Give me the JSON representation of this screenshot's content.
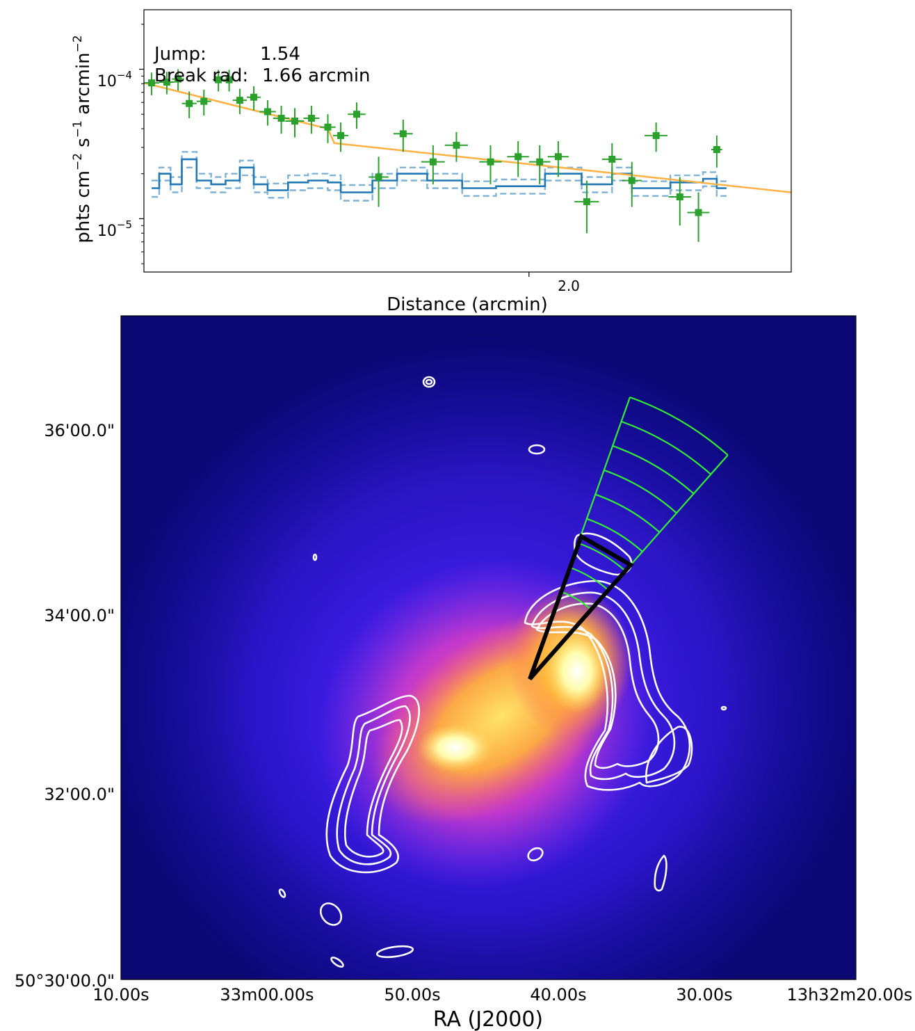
{
  "chart_data": [
    {
      "type": "scatter",
      "panel": "surface-brightness-profile",
      "xscale": "log",
      "yscale": "log",
      "xlabel": "Distance (arcmin)",
      "ylabel": "phts cm",
      "ylabel_parts": [
        "phts cm",
        "−2",
        " s",
        "−1",
        " arcmin",
        "−2"
      ],
      "xlim": [
        1.4,
        2.55
      ],
      "ylim": [
        4.4e-06,
        0.00025
      ],
      "x_ticks": [
        {
          "value": 2.0,
          "label": "2.0"
        }
      ],
      "y_ticks": [
        {
          "value": 0.0001,
          "base": "10",
          "exp": "−4"
        },
        {
          "value": 1e-05,
          "base": "10",
          "exp": "−5"
        }
      ],
      "annotations": [
        {
          "key": "Jump:",
          "value": "1.54"
        },
        {
          "key": "Break rad:",
          "value": "1.66 arcmin"
        }
      ],
      "colors": {
        "data": "#2ca02c",
        "model": "#ffb347",
        "background": "#1f77b4",
        "background_err": "#7fb2d5",
        "axes": "#000000"
      },
      "series": [
        {
          "name": "data",
          "style": "errorbar",
          "x": [
            1.41,
            1.43,
            1.445,
            1.46,
            1.48,
            1.5,
            1.515,
            1.53,
            1.55,
            1.57,
            1.59,
            1.61,
            1.635,
            1.66,
            1.68,
            1.705,
            1.74,
            1.78,
            1.83,
            1.87,
            1.93,
            1.98,
            2.02,
            2.055,
            2.11,
            2.16,
            2.2,
            2.25,
            2.3,
            2.34,
            2.38
          ],
          "y": [
            8.1e-05,
            8.2e-05,
            8.6e-05,
            5.9e-05,
            6.1e-05,
            8.5e-05,
            8.5e-05,
            6.2e-05,
            6.5e-05,
            5.2e-05,
            4.7e-05,
            4.5e-05,
            4.7e-05,
            4.1e-05,
            3.6e-05,
            5e-05,
            1.9e-05,
            3.7e-05,
            2.4e-05,
            3.1e-05,
            2.4e-05,
            2.6e-05,
            2.4e-05,
            2.6e-05,
            1.3e-05,
            2.5e-05,
            1.8e-05,
            3.6e-05,
            1.4e-05,
            1.1e-05,
            2.9e-05
          ],
          "xerr": [
            0.01,
            0.01,
            0.008,
            0.01,
            0.01,
            0.008,
            0.008,
            0.01,
            0.01,
            0.012,
            0.012,
            0.014,
            0.012,
            0.012,
            0.012,
            0.014,
            0.016,
            0.016,
            0.02,
            0.02,
            0.02,
            0.02,
            0.02,
            0.02,
            0.024,
            0.02,
            0.02,
            0.024,
            0.024,
            0.024,
            0.012
          ],
          "yerr_lo": [
            1.4e-05,
            1.4e-05,
            1.4e-05,
            1.2e-05,
            1.2e-05,
            1.4e-05,
            1.4e-05,
            1.2e-05,
            1.2e-05,
            1e-05,
            1e-05,
            1e-05,
            1e-05,
            9e-06,
            8e-06,
            1e-05,
            7e-06,
            9e-06,
            7e-06,
            7e-06,
            7e-06,
            7e-06,
            7e-06,
            7e-06,
            5e-06,
            7e-06,
            6e-06,
            8e-06,
            5e-06,
            4e-06,
            7e-06
          ],
          "yerr_hi": [
            1.4e-05,
            1.4e-05,
            1.4e-05,
            1.2e-05,
            1.2e-05,
            1.4e-05,
            1.4e-05,
            1.2e-05,
            1.2e-05,
            1e-05,
            1e-05,
            1e-05,
            1e-05,
            9e-06,
            8e-06,
            1e-05,
            7e-06,
            9e-06,
            7e-06,
            7e-06,
            7e-06,
            7e-06,
            7e-06,
            7e-06,
            5e-06,
            7e-06,
            6e-06,
            8e-06,
            5e-06,
            4e-06,
            7e-06
          ]
        },
        {
          "name": "broken power-law model",
          "style": "line",
          "x": [
            1.4,
            1.66,
            1.67,
            2.55
          ],
          "y": [
            8.1e-05,
            4e-05,
            3.2e-05,
            1.5e-05
          ]
        },
        {
          "name": "background",
          "style": "step",
          "edges": [
            1.41,
            1.42,
            1.435,
            1.45,
            1.47,
            1.49,
            1.51,
            1.53,
            1.55,
            1.57,
            1.6,
            1.63,
            1.66,
            1.68,
            1.73,
            1.77,
            1.82,
            1.88,
            1.94,
            2.03,
            2.1,
            2.16,
            2.2,
            2.28,
            2.35,
            2.38
          ],
          "values": [
            1.6e-05,
            2e-05,
            1.7e-05,
            2.5e-05,
            1.8e-05,
            1.7e-05,
            1.8e-05,
            2.2e-05,
            1.7e-05,
            1.55e-05,
            1.75e-05,
            1.8e-05,
            1.75e-05,
            1.5e-05,
            1.8e-05,
            2e-05,
            1.8e-05,
            1.6e-05,
            1.65e-05,
            2e-05,
            1.7e-05,
            2e-05,
            1.6e-05,
            1.75e-05,
            1.85e-05,
            1.6e-05
          ]
        },
        {
          "name": "background upper",
          "style": "step-dashed",
          "edges": [
            1.41,
            1.42,
            1.435,
            1.45,
            1.47,
            1.49,
            1.51,
            1.53,
            1.55,
            1.57,
            1.6,
            1.63,
            1.66,
            1.68,
            1.73,
            1.77,
            1.82,
            1.88,
            1.94,
            2.03,
            2.1,
            2.16,
            2.2,
            2.28,
            2.35,
            2.38
          ],
          "values": [
            1.8e-05,
            2.2e-05,
            1.9e-05,
            2.8e-05,
            2e-05,
            1.9e-05,
            2e-05,
            2.45e-05,
            1.9e-05,
            1.72e-05,
            1.95e-05,
            2e-05,
            1.95e-05,
            1.68e-05,
            2e-05,
            2.2e-05,
            2e-05,
            1.78e-05,
            1.83e-05,
            2.2e-05,
            1.9e-05,
            2.2e-05,
            1.78e-05,
            1.95e-05,
            2.05e-05,
            1.78e-05
          ]
        },
        {
          "name": "background lower",
          "style": "step-dashed",
          "edges": [
            1.41,
            1.42,
            1.435,
            1.45,
            1.47,
            1.49,
            1.51,
            1.53,
            1.55,
            1.57,
            1.6,
            1.63,
            1.66,
            1.68,
            1.73,
            1.77,
            1.82,
            1.88,
            1.94,
            2.03,
            2.1,
            2.16,
            2.2,
            2.28,
            2.35,
            2.38
          ],
          "values": [
            1.4e-05,
            1.8e-05,
            1.5e-05,
            2.2e-05,
            1.6e-05,
            1.5e-05,
            1.6e-05,
            1.95e-05,
            1.5e-05,
            1.38e-05,
            1.55e-05,
            1.6e-05,
            1.55e-05,
            1.32e-05,
            1.6e-05,
            1.8e-05,
            1.6e-05,
            1.42e-05,
            1.47e-05,
            1.8e-05,
            1.5e-05,
            1.8e-05,
            1.42e-05,
            1.55e-05,
            1.65e-05,
            1.42e-05
          ]
        }
      ]
    },
    {
      "type": "heatmap",
      "panel": "x-ray-image",
      "xlabel": "RA (J2000)",
      "x_ticks": [
        "10.00s",
        "33m00.00s",
        "50.00s",
        "40.00s",
        "30.00s",
        "13h32m20.00s"
      ],
      "y_ticks": [
        "50°30'00.0\"",
        "32'00.0\"",
        "34'00.0\"",
        "36'00.0\""
      ],
      "colormap": [
        "#08005a",
        "#1d10d6",
        "#6a2cf2",
        "#d63cc8",
        "#ff6a5a",
        "#ffc43a",
        "#ffffa0",
        "#ffffff"
      ],
      "overlays": {
        "radio_contours": "white contours",
        "sector_annuli": "green wedge, 8 annuli",
        "selected_sector": "black wedge"
      }
    }
  ]
}
